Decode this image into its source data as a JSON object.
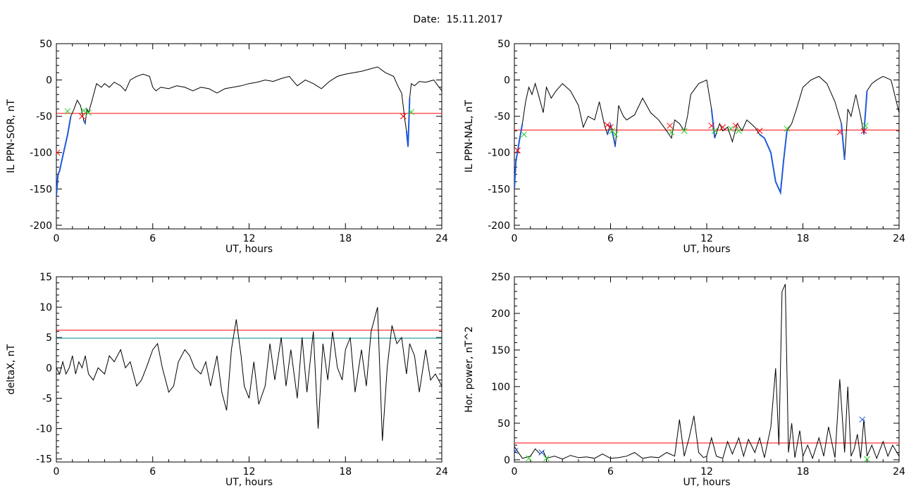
{
  "header": {
    "date_label": "Date:",
    "date_value": "15.11.2017"
  },
  "colors": {
    "data": "#000000",
    "threshold": "#ff0000",
    "threshold2": "#008b8b",
    "segment": "#1e5adc",
    "marker_red": "#ff0000",
    "marker_green": "#22cc22",
    "marker_blue": "#1e5adc"
  },
  "chart_data": [
    {
      "type": "line",
      "title": "",
      "xlabel": "UT, hours",
      "ylabel": "IL PPN-SOR, nT",
      "xlim": [
        0,
        24
      ],
      "ylim": [
        -205,
        50
      ],
      "xticks": [
        0,
        6,
        12,
        18,
        24
      ],
      "yticks": [
        -200,
        -150,
        -100,
        -50,
        0,
        50
      ],
      "threshold_lines": [
        {
          "y": -46,
          "color": "red"
        }
      ],
      "series": [
        {
          "x": [
            0,
            0.1,
            0.2,
            0.3,
            0.5,
            0.7,
            0.9,
            1.1,
            1.3,
            1.5,
            1.7,
            1.8,
            1.9,
            2.0,
            2.2,
            2.5,
            2.8,
            3.0,
            3.3,
            3.6,
            4.0,
            4.3,
            4.6,
            5.0,
            5.4,
            5.8,
            6.0,
            6.2,
            6.5,
            7.0,
            7.5,
            8.0,
            8.5,
            9.0,
            9.5,
            10.0,
            10.5,
            11.0,
            11.5,
            12.0,
            12.5,
            13.0,
            13.5,
            14.0,
            14.5,
            15.0,
            15.5,
            16.0,
            16.5,
            17.0,
            17.5,
            18.0,
            18.5,
            19.0,
            19.5,
            20.0,
            20.5,
            21.0,
            21.3,
            21.5,
            21.7,
            21.8,
            21.9,
            22.0,
            22.1,
            22.3,
            22.6,
            23.0,
            23.5,
            24.0
          ],
          "y": [
            -160,
            -130,
            -125,
            -115,
            -95,
            -75,
            -50,
            -40,
            -28,
            -35,
            -55,
            -60,
            -40,
            -45,
            -30,
            -5,
            -10,
            -5,
            -10,
            -3,
            -8,
            -15,
            0,
            5,
            8,
            5,
            -10,
            -15,
            -10,
            -12,
            -8,
            -10,
            -15,
            -10,
            -12,
            -18,
            -12,
            -10,
            -8,
            -5,
            -3,
            0,
            -2,
            2,
            5,
            -8,
            0,
            -5,
            -12,
            -2,
            5,
            8,
            10,
            12,
            15,
            18,
            10,
            5,
            -10,
            -18,
            -55,
            -70,
            -92,
            -25,
            -5,
            -8,
            -2,
            -3,
            0,
            -15
          ]
        }
      ],
      "highlight_segments": [
        [
          0,
          0.9
        ],
        [
          1.6,
          1.8
        ],
        [
          21.8,
          22.0
        ]
      ],
      "markers": [
        {
          "x": 0.05,
          "y": -100,
          "symbol": "x",
          "color": "red"
        },
        {
          "x": 0.7,
          "y": -43,
          "symbol": "x",
          "color": "green"
        },
        {
          "x": 1.6,
          "y": -50,
          "symbol": "x",
          "color": "red"
        },
        {
          "x": 1.7,
          "y": -42,
          "symbol": "x",
          "color": "green"
        },
        {
          "x": 2.0,
          "y": -45,
          "symbol": "x",
          "color": "green"
        },
        {
          "x": 21.6,
          "y": -50,
          "symbol": "x",
          "color": "red"
        },
        {
          "x": 22.1,
          "y": -44,
          "symbol": "x",
          "color": "green"
        }
      ]
    },
    {
      "type": "line",
      "title": "",
      "xlabel": "UT, hours",
      "ylabel": "IL PPN-NAL, nT",
      "xlim": [
        0,
        24
      ],
      "ylim": [
        -205,
        50
      ],
      "xticks": [
        0,
        6,
        12,
        18,
        24
      ],
      "yticks": [
        -200,
        -150,
        -100,
        -50,
        0,
        50
      ],
      "threshold_lines": [
        {
          "y": -69,
          "color": "red"
        }
      ],
      "series": [
        {
          "x": [
            0,
            0.1,
            0.2,
            0.3,
            0.5,
            0.7,
            0.9,
            1.1,
            1.3,
            1.5,
            1.8,
            2.0,
            2.3,
            2.6,
            3.0,
            3.5,
            4.0,
            4.3,
            4.6,
            5.0,
            5.3,
            5.6,
            5.8,
            6.0,
            6.2,
            6.3,
            6.5,
            6.8,
            7.0,
            7.5,
            8.0,
            8.5,
            9.0,
            9.5,
            9.8,
            10.0,
            10.3,
            10.6,
            10.8,
            11.0,
            11.5,
            12.0,
            12.3,
            12.5,
            12.8,
            13.0,
            13.3,
            13.6,
            13.9,
            14.2,
            14.5,
            15.0,
            15.3,
            15.6,
            16.0,
            16.3,
            16.6,
            16.8,
            17.0,
            17.3,
            17.6,
            18.0,
            18.5,
            19.0,
            19.5,
            20.0,
            20.2,
            20.4,
            20.6,
            20.8,
            21.0,
            21.3,
            21.6,
            21.8,
            22.0,
            22.3,
            22.6,
            23.0,
            23.5,
            24.0
          ],
          "y": [
            -150,
            -110,
            -100,
            -85,
            -60,
            -30,
            -10,
            -20,
            -5,
            -20,
            -45,
            -10,
            -25,
            -15,
            -5,
            -15,
            -35,
            -65,
            -50,
            -55,
            -30,
            -60,
            -75,
            -62,
            -80,
            -92,
            -35,
            -50,
            -55,
            -48,
            -25,
            -45,
            -55,
            -70,
            -80,
            -55,
            -60,
            -70,
            -50,
            -20,
            -5,
            0,
            -40,
            -80,
            -60,
            -70,
            -65,
            -85,
            -60,
            -70,
            -55,
            -65,
            -75,
            -80,
            -100,
            -140,
            -155,
            -110,
            -70,
            -60,
            -40,
            -10,
            0,
            5,
            -5,
            -30,
            -45,
            -60,
            -110,
            -40,
            -50,
            -20,
            -50,
            -75,
            -15,
            -5,
            0,
            5,
            0,
            -45
          ]
        }
      ],
      "highlight_segments": [
        [
          0,
          0.5
        ],
        [
          5.8,
          6.3
        ],
        [
          9.6,
          9.9
        ],
        [
          12.3,
          12.6
        ],
        [
          15.2,
          17.0
        ],
        [
          20.4,
          20.6
        ],
        [
          21.8,
          22.0
        ]
      ],
      "markers": [
        {
          "x": 0.2,
          "y": -97,
          "symbol": "x",
          "color": "red"
        },
        {
          "x": 0.6,
          "y": -75,
          "symbol": "x",
          "color": "green"
        },
        {
          "x": 5.8,
          "y": -62,
          "symbol": "x",
          "color": "red"
        },
        {
          "x": 6.0,
          "y": -65,
          "symbol": "x",
          "color": "red"
        },
        {
          "x": 6.1,
          "y": -70,
          "symbol": "x",
          "color": "green"
        },
        {
          "x": 6.3,
          "y": -75,
          "symbol": "x",
          "color": "green"
        },
        {
          "x": 9.7,
          "y": -63,
          "symbol": "x",
          "color": "red"
        },
        {
          "x": 9.8,
          "y": -72,
          "symbol": "x",
          "color": "green"
        },
        {
          "x": 10.6,
          "y": -70,
          "symbol": "x",
          "color": "green"
        },
        {
          "x": 12.3,
          "y": -63,
          "symbol": "x",
          "color": "red"
        },
        {
          "x": 12.5,
          "y": -70,
          "symbol": "x",
          "color": "green"
        },
        {
          "x": 13.0,
          "y": -65,
          "symbol": "x",
          "color": "red"
        },
        {
          "x": 13.5,
          "y": -67,
          "symbol": "x",
          "color": "green"
        },
        {
          "x": 13.8,
          "y": -63,
          "symbol": "x",
          "color": "red"
        },
        {
          "x": 14.0,
          "y": -70,
          "symbol": "x",
          "color": "green"
        },
        {
          "x": 15.3,
          "y": -70,
          "symbol": "x",
          "color": "red"
        },
        {
          "x": 17.0,
          "y": -67,
          "symbol": "x",
          "color": "green"
        },
        {
          "x": 20.3,
          "y": -72,
          "symbol": "x",
          "color": "red"
        },
        {
          "x": 21.8,
          "y": -70,
          "symbol": "x",
          "color": "red"
        },
        {
          "x": 21.9,
          "y": -63,
          "symbol": "x",
          "color": "green"
        }
      ]
    },
    {
      "type": "line",
      "title": "",
      "xlabel": "UT, hours",
      "ylabel": "deltaX, nT",
      "xlim": [
        0,
        24
      ],
      "ylim": [
        -15.5,
        15
      ],
      "xticks": [
        0,
        6,
        12,
        18,
        24
      ],
      "yticks": [
        -15,
        -10,
        -5,
        0,
        5,
        10,
        15
      ],
      "threshold_lines": [
        {
          "y": 6.2,
          "color": "red"
        },
        {
          "y": 4.9,
          "color": "teal"
        }
      ],
      "series": [
        {
          "x": [
            0,
            0.2,
            0.4,
            0.6,
            0.8,
            1.0,
            1.2,
            1.4,
            1.6,
            1.8,
            2.0,
            2.3,
            2.6,
            3.0,
            3.3,
            3.6,
            4.0,
            4.3,
            4.6,
            5.0,
            5.3,
            5.6,
            6.0,
            6.3,
            6.6,
            7.0,
            7.3,
            7.6,
            8.0,
            8.3,
            8.6,
            9.0,
            9.3,
            9.6,
            10.0,
            10.3,
            10.6,
            10.9,
            11.2,
            11.5,
            11.7,
            12.0,
            12.3,
            12.6,
            13.0,
            13.3,
            13.6,
            14.0,
            14.3,
            14.6,
            15.0,
            15.3,
            15.6,
            16.0,
            16.3,
            16.6,
            16.9,
            17.2,
            17.5,
            17.8,
            18.0,
            18.3,
            18.6,
            19.0,
            19.3,
            19.6,
            20.0,
            20.3,
            20.6,
            20.9,
            21.2,
            21.5,
            21.8,
            22.0,
            22.3,
            22.6,
            23.0,
            23.3,
            23.6,
            24.0
          ],
          "y": [
            0,
            -1,
            1,
            -1,
            0,
            2,
            -1,
            1,
            0,
            2,
            -1,
            -2,
            0,
            -1,
            2,
            1,
            3,
            0,
            1,
            -3,
            -2,
            0,
            3,
            4,
            0,
            -4,
            -3,
            1,
            3,
            2,
            0,
            -1,
            1,
            -3,
            2,
            -4,
            -7,
            3,
            8,
            2,
            -3,
            -5,
            1,
            -6,
            -3,
            4,
            -2,
            5,
            -3,
            3,
            -5,
            5,
            -4,
            6,
            -10,
            4,
            -2,
            6,
            0,
            -2,
            3,
            5,
            -4,
            3,
            -3,
            6,
            10,
            -12,
            0,
            7,
            4,
            5,
            -1,
            4,
            2,
            -4,
            3,
            -2,
            -1,
            -3
          ]
        }
      ],
      "highlight_segments": [],
      "markers": []
    },
    {
      "type": "line",
      "title": "",
      "xlabel": "UT, hours",
      "ylabel": "Hor. power, nT^2",
      "xlim": [
        0,
        24
      ],
      "ylim": [
        -3,
        250
      ],
      "xticks": [
        0,
        6,
        12,
        18,
        24
      ],
      "yticks": [
        0,
        50,
        100,
        150,
        200,
        250
      ],
      "threshold_lines": [
        {
          "y": 23,
          "color": "red"
        }
      ],
      "series": [
        {
          "x": [
            0,
            0.5,
            1.0,
            1.3,
            1.6,
            1.8,
            2.0,
            2.5,
            3.0,
            3.5,
            4.0,
            4.5,
            5.0,
            5.5,
            6.0,
            6.5,
            7.0,
            7.5,
            8.0,
            8.5,
            9.0,
            9.5,
            10.0,
            10.3,
            10.6,
            10.9,
            11.2,
            11.5,
            11.8,
            12.0,
            12.3,
            12.6,
            13.0,
            13.3,
            13.6,
            14.0,
            14.3,
            14.6,
            15.0,
            15.3,
            15.6,
            16.0,
            16.3,
            16.5,
            16.7,
            16.9,
            17.1,
            17.3,
            17.5,
            17.8,
            18.0,
            18.3,
            18.6,
            19.0,
            19.3,
            19.6,
            20.0,
            20.3,
            20.6,
            20.8,
            21.0,
            21.2,
            21.4,
            21.6,
            21.8,
            22.0,
            22.3,
            22.6,
            23.0,
            23.3,
            23.6,
            24.0
          ],
          "y": [
            18,
            2,
            5,
            15,
            8,
            12,
            2,
            5,
            1,
            6,
            3,
            4,
            2,
            8,
            2,
            3,
            5,
            10,
            2,
            4,
            3,
            10,
            5,
            55,
            5,
            30,
            60,
            10,
            3,
            5,
            30,
            5,
            2,
            25,
            8,
            30,
            5,
            28,
            10,
            30,
            3,
            45,
            125,
            20,
            230,
            240,
            10,
            50,
            3,
            40,
            5,
            20,
            2,
            30,
            5,
            45,
            3,
            110,
            10,
            100,
            5,
            15,
            35,
            2,
            55,
            5,
            20,
            2,
            25,
            5,
            20,
            5
          ]
        }
      ],
      "highlight_segments": [],
      "markers": [
        {
          "x": 0.05,
          "y": 12,
          "symbol": "x",
          "color": "blue"
        },
        {
          "x": 0.9,
          "y": 2,
          "symbol": "x",
          "color": "green"
        },
        {
          "x": 1.7,
          "y": 10,
          "symbol": "x",
          "color": "blue"
        },
        {
          "x": 2.0,
          "y": 2,
          "symbol": "x",
          "color": "green"
        },
        {
          "x": 21.7,
          "y": 55,
          "symbol": "x",
          "color": "blue"
        },
        {
          "x": 22.0,
          "y": 1,
          "symbol": "x",
          "color": "green"
        }
      ]
    }
  ]
}
